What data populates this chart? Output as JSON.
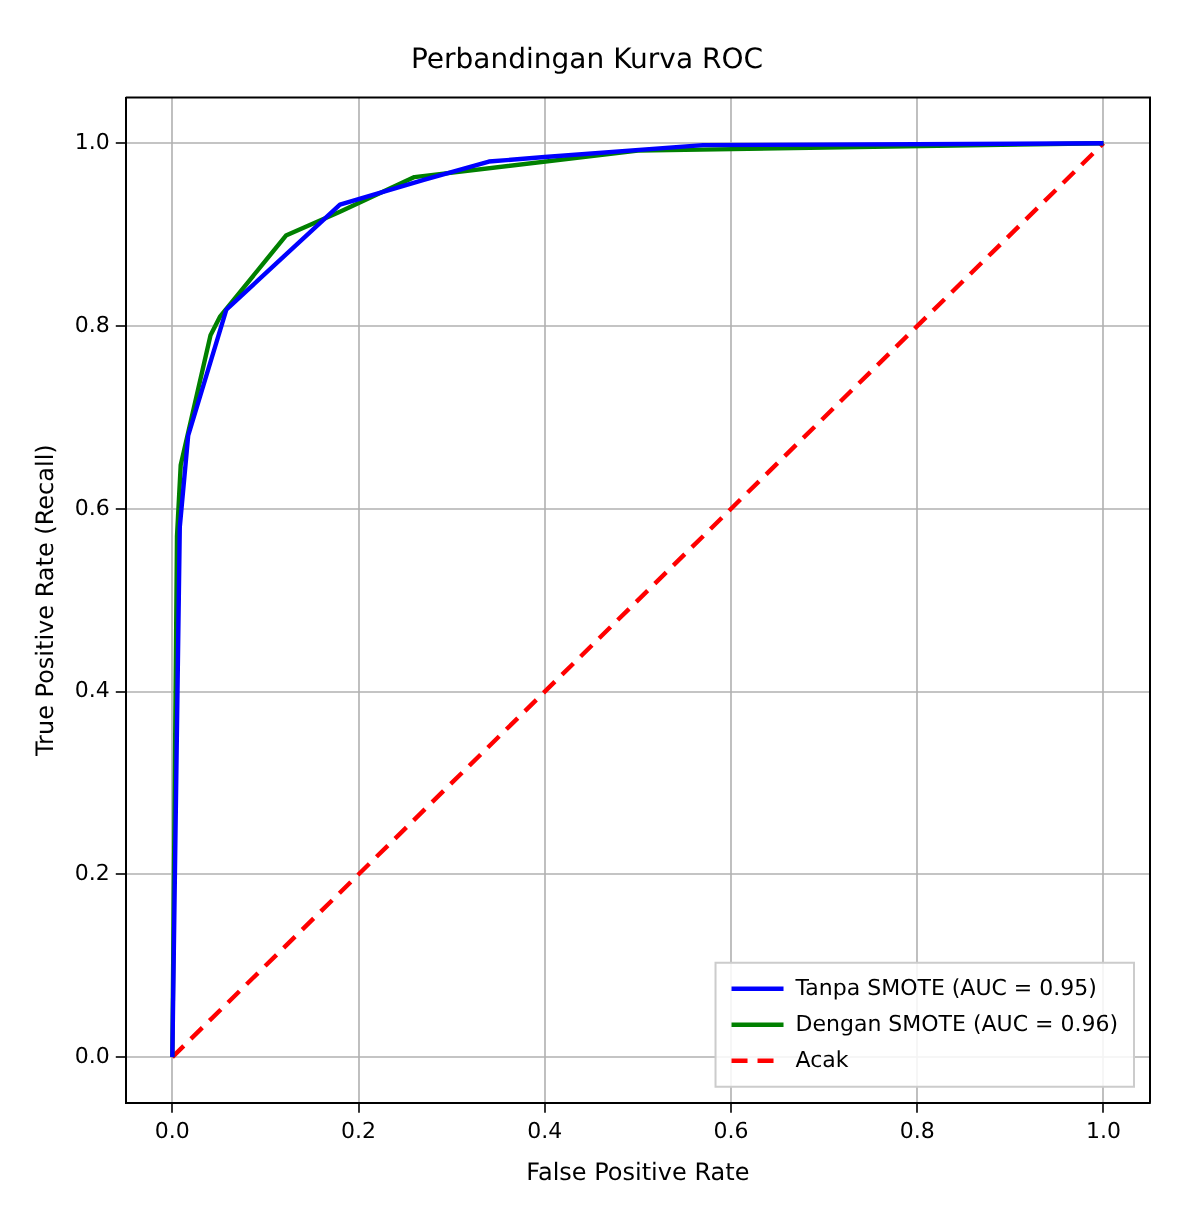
{
  "chart_data": {
    "type": "line",
    "title": "Perbandingan Kurva ROC",
    "xlabel": "False Positive Rate",
    "ylabel": "True Positive Rate (Recall)",
    "xlim": [
      -0.05,
      1.05
    ],
    "ylim": [
      -0.05,
      1.05
    ],
    "xticks": [
      {
        "value": 0,
        "label": "0.0"
      },
      {
        "value": 0.2,
        "label": "0.2"
      },
      {
        "value": 0.4,
        "label": "0.4"
      },
      {
        "value": 0.6,
        "label": "0.6"
      },
      {
        "value": 0.8,
        "label": "0.8"
      },
      {
        "value": 1,
        "label": "1.0"
      }
    ],
    "yticks": [
      {
        "value": 0,
        "label": "0.0"
      },
      {
        "value": 0.2,
        "label": "0.2"
      },
      {
        "value": 0.4,
        "label": "0.4"
      },
      {
        "value": 0.6,
        "label": "0.6"
      },
      {
        "value": 0.8,
        "label": "0.8"
      },
      {
        "value": 1,
        "label": "1.0"
      }
    ],
    "grid": true,
    "legend": "bottom right",
    "marker": "none",
    "series": [
      {
        "name": "Tanpa SMOTE (AUC = 0.95)",
        "color": "#0000ff",
        "line_style": "solid",
        "x": [
          0,
          0.008,
          0.017,
          0.058,
          0.18,
          0.27,
          0.34,
          0.4,
          0.57,
          1
        ],
        "values": [
          0,
          0.58,
          0.68,
          0.818,
          0.933,
          0.96,
          0.98,
          0.985,
          0.998,
          1
        ]
      },
      {
        "name": "Dengan SMOTE (AUC = 0.96)",
        "color": "#008000",
        "line_style": "solid",
        "x": [
          0,
          0.005,
          0.009,
          0.041,
          0.051,
          0.122,
          0.18,
          0.26,
          0.5,
          1
        ],
        "values": [
          0,
          0.57,
          0.648,
          0.79,
          0.81,
          0.899,
          0.925,
          0.963,
          0.992,
          1
        ]
      },
      {
        "name": "Acak",
        "color": "#ff0000",
        "line_style": "dashed",
        "x": [
          0,
          1
        ],
        "values": [
          0,
          1
        ]
      }
    ]
  }
}
